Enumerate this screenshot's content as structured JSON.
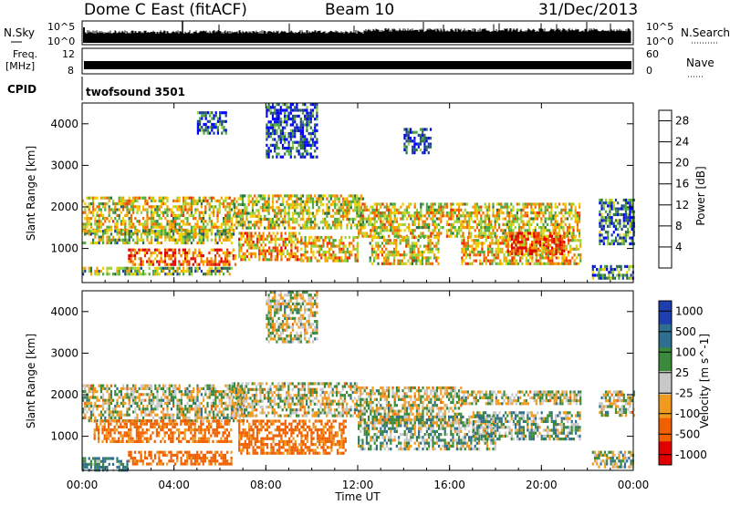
{
  "header": {
    "station": "Dome C East (fitACF)",
    "beam": "Beam 10",
    "date": "31/Dec/2013"
  },
  "top_panels": {
    "nsky_label": "N.Sky",
    "nsky_ticks": [
      "10^5",
      "10^0"
    ],
    "nsearch_label": "N.Search",
    "nsearch_ticks": [
      "10^5",
      "10^0"
    ],
    "freq_label": "Freq.",
    "freq_unit": "[MHz]",
    "freq_ticks": [
      "12",
      "8"
    ],
    "nave_label": "Nave",
    "nave_ticks": [
      "60",
      "0"
    ],
    "cpid_label": "CPID",
    "cpid_value": "twofsound 3501"
  },
  "colors": {
    "power": [
      "#0000ff",
      "#1e3f9c",
      "#2e6e44",
      "#4cab3c",
      "#9bd23c",
      "#f0d000",
      "#f4a000",
      "#f06a00",
      "#f03000",
      "#e00000"
    ],
    "velocity": [
      "#e00000",
      "#f06000",
      "#f09a20",
      "#c8c8c8",
      "#3b8a3b",
      "#2e6e8e",
      "#1f3fb0"
    ]
  },
  "chart_data": [
    {
      "type": "heatmap",
      "name": "power",
      "ylabel": "Slant Range [km]",
      "xlabel": "",
      "x_ticks": [
        "00:00",
        "04:00",
        "08:00",
        "12:00",
        "16:00",
        "20:00",
        "00:00"
      ],
      "xlim_hours": [
        0,
        24
      ],
      "y_ticks": [
        1000,
        2000,
        3000,
        4000
      ],
      "ylim_km": [
        180,
        4500
      ],
      "colorbar": {
        "label": "Power [dB]",
        "ticks": [
          4,
          8,
          12,
          16,
          20,
          24,
          28
        ],
        "range": [
          0,
          30
        ]
      },
      "bands": [
        {
          "t0": 0.0,
          "t1": 6.6,
          "r0": 1400,
          "r1": 2250,
          "level": 0.55
        },
        {
          "t0": 0.0,
          "t1": 6.6,
          "r0": 1150,
          "r1": 1450,
          "level": 0.45
        },
        {
          "t0": 2.0,
          "t1": 6.8,
          "r0": 600,
          "r1": 1000,
          "level": 0.75
        },
        {
          "t0": 0.0,
          "t1": 6.5,
          "r0": 380,
          "r1": 560,
          "level": 0.4
        },
        {
          "t0": 6.6,
          "t1": 12.2,
          "r0": 1500,
          "r1": 2300,
          "level": 0.5
        },
        {
          "t0": 6.8,
          "t1": 9.5,
          "r0": 700,
          "r1": 1400,
          "level": 0.65
        },
        {
          "t0": 9.5,
          "t1": 12.0,
          "r0": 700,
          "r1": 1300,
          "level": 0.6
        },
        {
          "t0": 12.0,
          "t1": 21.7,
          "r0": 1300,
          "r1": 2100,
          "level": 0.55
        },
        {
          "t0": 12.5,
          "t1": 15.5,
          "r0": 600,
          "r1": 1300,
          "level": 0.55
        },
        {
          "t0": 16.5,
          "t1": 21.7,
          "r0": 600,
          "r1": 1300,
          "level": 0.6
        },
        {
          "t0": 18.5,
          "t1": 21.0,
          "r0": 900,
          "r1": 1400,
          "level": 0.85
        },
        {
          "t0": 22.2,
          "t1": 24.0,
          "r0": 250,
          "r1": 600,
          "level": 0.3
        },
        {
          "t0": 22.5,
          "t1": 24.0,
          "r0": 1100,
          "r1": 2200,
          "level": 0.25
        },
        {
          "t0": 8.0,
          "t1": 10.2,
          "r0": 3200,
          "r1": 4500,
          "level": 0.15
        },
        {
          "t0": 5.0,
          "t1": 6.3,
          "r0": 3800,
          "r1": 4300,
          "level": 0.15
        },
        {
          "t0": 14.0,
          "t1": 15.2,
          "r0": 3300,
          "r1": 3900,
          "level": 0.2
        }
      ]
    },
    {
      "type": "heatmap",
      "name": "velocity",
      "ylabel": "Slant Range [km]",
      "xlabel": "Time UT",
      "x_ticks": [
        "00:00",
        "04:00",
        "08:00",
        "12:00",
        "16:00",
        "20:00",
        "00:00"
      ],
      "xlim_hours": [
        0,
        24
      ],
      "y_ticks": [
        1000,
        2000,
        3000,
        4000
      ],
      "ylim_km": [
        180,
        4500
      ],
      "colorbar": {
        "label": "Velocity [m s^-1]",
        "ticks": [
          1000,
          500,
          100,
          25,
          -25,
          -100,
          -500,
          -1000
        ]
      },
      "bands": [
        {
          "t0": 0.0,
          "t1": 7.0,
          "r0": 1350,
          "r1": 2250,
          "vel": 0
        },
        {
          "t0": 0.5,
          "t1": 6.5,
          "r0": 900,
          "r1": 1400,
          "vel": -150
        },
        {
          "t0": 2.0,
          "t1": 6.5,
          "r0": 350,
          "r1": 650,
          "vel": -180
        },
        {
          "t0": 0.0,
          "t1": 2.0,
          "r0": 200,
          "r1": 500,
          "vel": 120
        },
        {
          "t0": 6.5,
          "t1": 12.0,
          "r0": 1500,
          "r1": 2300,
          "vel": 0
        },
        {
          "t0": 6.8,
          "t1": 11.5,
          "r0": 600,
          "r1": 1400,
          "vel": -160
        },
        {
          "t0": 12.0,
          "t1": 16.5,
          "r0": 1300,
          "r1": 2200,
          "vel": 0
        },
        {
          "t0": 12.0,
          "t1": 18.0,
          "r0": 700,
          "r1": 1500,
          "vel": 40
        },
        {
          "t0": 17.0,
          "t1": 21.7,
          "r0": 900,
          "r1": 1600,
          "vel": 50
        },
        {
          "t0": 16.5,
          "t1": 21.7,
          "r0": 1800,
          "r1": 2100,
          "vel": 0
        },
        {
          "t0": 22.2,
          "t1": 24.0,
          "r0": 250,
          "r1": 650,
          "vel": 30
        },
        {
          "t0": 22.5,
          "t1": 24.0,
          "r0": 1500,
          "r1": 2100,
          "vel": 0
        },
        {
          "t0": 8.0,
          "t1": 10.2,
          "r0": 3300,
          "r1": 4500,
          "vel": 0
        }
      ]
    }
  ]
}
